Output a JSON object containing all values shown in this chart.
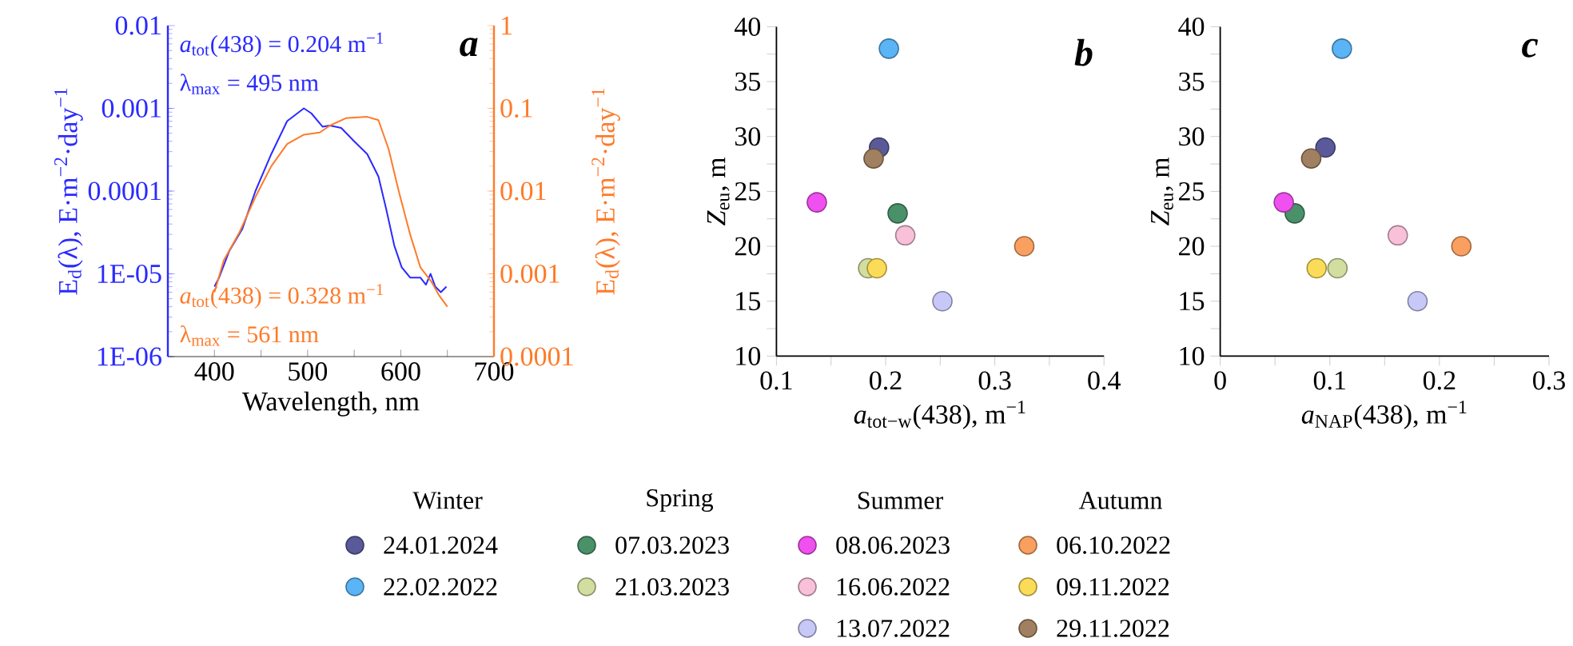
{
  "chart_data": [
    {
      "type": "line",
      "title": "a",
      "xlabel": "Wavelength, nm",
      "ylabel": "E$_{d}$(λ), E·m$^{−2}$·day$^{−1}$",
      "log": true,
      "xlim": [
        350,
        700
      ],
      "xticks": [
        {
          "value": 350,
          "label": null
        },
        400,
        {
          "value": 450,
          "label": null
        },
        500,
        {
          "value": 550,
          "label": null
        },
        600,
        {
          "value": 650,
          "label": null
        },
        700
      ],
      "ylim": [
        1e-06,
        0.01
      ],
      "yticks": [
        {
          "value": 1e-06,
          "label": "1E-06"
        },
        {
          "value": 1e-05,
          "label": "1E-05"
        },
        0.0001,
        0.001,
        0.01
      ],
      "annotations": [
        "*a*$_{tot}$(438) = 0.204 m$^{−1}$",
        "λ$_{max}$ = 495 nm"
      ],
      "series": [
        {
          "color": "#2a2aff",
          "x": [
            400,
            405,
            416,
            430,
            444,
            461,
            478,
            496,
            504,
            516,
            524,
            536,
            550,
            564,
            576,
            584,
            593,
            601,
            610,
            621,
            627,
            632,
            637,
            643,
            649
          ],
          "values": [
            7e-06,
            9e-06,
            1.9e-05,
            3.5e-05,
            0.0001,
            0.00028,
            0.0007,
            0.001,
            0.00087,
            0.0006,
            0.00062,
            0.00058,
            0.0004,
            0.00028,
            0.00015,
            6.3e-05,
            2.2e-05,
            1.2e-05,
            9e-06,
            9e-06,
            7.4e-06,
            1e-05,
            7e-06,
            6e-06,
            7e-06
          ]
        }
      ]
    },
    {
      "type": "line",
      "ylabel": "E$_{d}$(λ), E·m$^{−2}$·day$^{−1}$",
      "log": true,
      "tick_labels": "y",
      "xlim": [
        350,
        700
      ],
      "ylim": [
        0.0001,
        1
      ],
      "yticks": [
        0.0001,
        0.001,
        0.01,
        0.1,
        1
      ],
      "annotations": [
        "*a*$_{tot}$(438) = 0.328 m$^{−1}$",
        "λ$_{max}$ = 561 nm"
      ],
      "series": [
        {
          "color": "#ff7a28",
          "x": [
            400,
            410,
            427,
            444,
            461,
            478,
            496,
            513,
            524,
            541,
            564,
            576,
            587,
            598,
            610,
            621,
            633,
            641,
            650
          ],
          "values": [
            0.0006,
            0.00145,
            0.0032,
            0.0085,
            0.02,
            0.037,
            0.048,
            0.051,
            0.062,
            0.076,
            0.079,
            0.072,
            0.032,
            0.0098,
            0.003,
            0.0012,
            0.0008,
            0.00055,
            0.0004
          ]
        }
      ]
    },
    {
      "type": "scatter",
      "title": "b",
      "xlabel": "*a*$_{tot−w}$(438), m$^{−1}$",
      "ylabel": "*Z*$_{eu}$, m",
      "marker": "circle",
      "legend": "bottom",
      "xlim": [
        0.1,
        0.4
      ],
      "xticks": [
        0.1,
        {
          "value": 0.15,
          "label": null
        },
        0.2,
        {
          "value": 0.25,
          "label": null
        },
        0.3,
        {
          "value": 0.35,
          "label": null
        },
        0.4
      ],
      "ylim": [
        10,
        40
      ],
      "yticks": [
        10,
        {
          "value": 12.5,
          "label": null
        },
        15,
        {
          "value": 17.5,
          "label": null
        },
        20,
        {
          "value": 22.5,
          "label": null
        },
        25,
        {
          "value": 27.5,
          "label": null
        },
        30,
        {
          "value": 32.5,
          "label": null
        },
        35,
        {
          "value": 37.5,
          "label": null
        },
        40
      ],
      "annotations": [
        "Winter",
        "Spring",
        "Summer",
        "Autumn"
      ],
      "series": [
        {
          "name": "24.01.2024",
          "color": "#5a5a9a",
          "x": [
            0.194
          ],
          "values": [
            29
          ]
        },
        {
          "name": "22.02.2022",
          "color": "#5ab4f5",
          "x": [
            0.203
          ],
          "values": [
            38
          ]
        },
        {
          "name": "07.03.2023",
          "color": "#4a9068",
          "x": [
            0.211
          ],
          "values": [
            23
          ]
        },
        {
          "name": "21.03.2023",
          "color": "#d2dea0",
          "x": [
            0.184
          ],
          "values": [
            18
          ]
        },
        {
          "name": "08.06.2023",
          "color": "#f050f0",
          "x": [
            0.137
          ],
          "values": [
            24
          ]
        },
        {
          "name": "16.06.2022",
          "color": "#f9c0da",
          "x": [
            0.218
          ],
          "values": [
            21
          ]
        },
        {
          "name": "13.07.2022",
          "color": "#c8c8f8",
          "x": [
            0.252
          ],
          "values": [
            15
          ]
        },
        {
          "name": "06.10.2022",
          "color": "#f9a060",
          "x": [
            0.327
          ],
          "values": [
            20
          ]
        },
        {
          "name": "09.11.2022",
          "color": "#fbdc58",
          "x": [
            0.192
          ],
          "values": [
            18
          ]
        },
        {
          "name": "29.11.2022",
          "color": "#a08060",
          "x": [
            0.189
          ],
          "values": [
            28
          ]
        }
      ]
    },
    {
      "type": "scatter",
      "title": "c",
      "xlabel": "*a*$_{NAP}$(438), m$^{−1}$",
      "ylabel": "*Z*$_{eu}$, m",
      "marker": "circle",
      "xlim": [
        0,
        0.3
      ],
      "xticks": [
        0,
        {
          "value": 0.05,
          "label": null
        },
        0.1,
        {
          "value": 0.15,
          "label": null
        },
        0.2,
        {
          "value": 0.25,
          "label": null
        },
        0.3
      ],
      "ylim": [
        10,
        40
      ],
      "yticks": [
        10,
        {
          "value": 12.5,
          "label": null
        },
        15,
        {
          "value": 17.5,
          "label": null
        },
        20,
        {
          "value": 22.5,
          "label": null
        },
        25,
        {
          "value": 27.5,
          "label": null
        },
        30,
        {
          "value": 32.5,
          "label": null
        },
        35,
        {
          "value": 37.5,
          "label": null
        },
        40
      ],
      "series": [
        {
          "color": "#5a5a9a",
          "x": [
            0.096
          ],
          "values": [
            29
          ]
        },
        {
          "color": "#5ab4f5",
          "x": [
            0.111
          ],
          "values": [
            38
          ]
        },
        {
          "color": "#4a9068",
          "x": [
            0.068
          ],
          "values": [
            23
          ]
        },
        {
          "color": "#d2dea0",
          "x": [
            0.107
          ],
          "values": [
            18
          ]
        },
        {
          "color": "#f050f0",
          "x": [
            0.058
          ],
          "values": [
            24
          ]
        },
        {
          "color": "#f9c0da",
          "x": [
            0.162
          ],
          "values": [
            21
          ]
        },
        {
          "color": "#c8c8f8",
          "x": [
            0.18
          ],
          "values": [
            15
          ]
        },
        {
          "color": "#f9a060",
          "x": [
            0.22
          ],
          "values": [
            20
          ]
        },
        {
          "color": "#fbdc58",
          "x": [
            0.088
          ],
          "values": [
            18
          ]
        },
        {
          "color": "#a08060",
          "x": [
            0.083
          ],
          "values": [
            28
          ]
        }
      ]
    }
  ]
}
